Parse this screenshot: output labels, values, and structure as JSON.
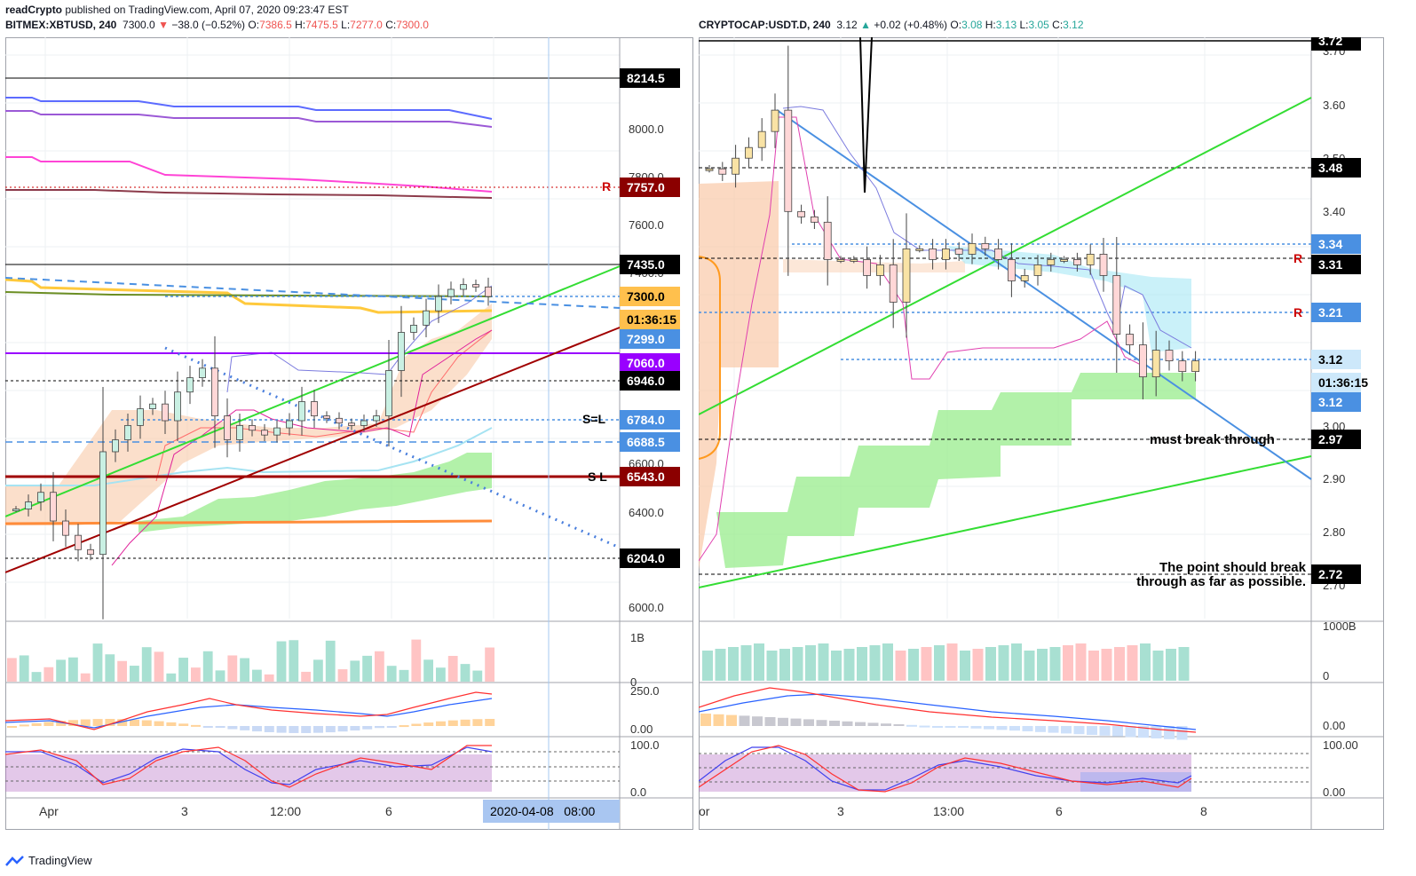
{
  "header": {
    "author": "readCrypto",
    "published": "published on TradingView.com, April 07, 2020 09:23:47 EST"
  },
  "left": {
    "symbol": "BITMEX:XBTUSD, 240",
    "price": "7300.0",
    "change": "−38.0 (−0.52%)",
    "o": "7386.5",
    "h": "7475.5",
    "l": "7277.0",
    "c": "7300.0",
    "y_ticks": [
      "8000.0",
      "7800.0",
      "7600.0",
      "7400.0",
      "6600.0",
      "6400.0",
      "6000.0"
    ],
    "levels": [
      {
        "label": "8214.5",
        "bg": "#000000",
        "fg": "#ffffff"
      },
      {
        "label": "7757.0",
        "bg": "#8b0000",
        "fg": "#ffffff"
      },
      {
        "label": "7435.0",
        "bg": "#000000",
        "fg": "#ffffff"
      },
      {
        "label": "7300.0",
        "bg": "#ffc04d",
        "fg": "#000000"
      },
      {
        "label": "01:36:15",
        "bg": "#ffc04d",
        "fg": "#000000"
      },
      {
        "label": "7299.0",
        "bg": "#4a90e2",
        "fg": "#ffffff"
      },
      {
        "label": "7060.0",
        "bg": "#9900ff",
        "fg": "#ffffff"
      },
      {
        "label": "6946.0",
        "bg": "#000000",
        "fg": "#ffffff"
      },
      {
        "label": "6784.0",
        "bg": "#4a90e2",
        "fg": "#ffffff"
      },
      {
        "label": "6688.5",
        "bg": "#4a90e2",
        "fg": "#ffffff"
      },
      {
        "label": "6543.0",
        "bg": "#8b0000",
        "fg": "#ffffff"
      },
      {
        "label": "6204.0",
        "bg": "#000000",
        "fg": "#ffffff"
      }
    ],
    "annotations": {
      "r": "R",
      "sl1": "S=L",
      "sl2": "S L"
    },
    "vol_ticks": [
      "1B",
      "0"
    ],
    "macd_ticks": [
      "250.0",
      "0.00"
    ],
    "rsi_ticks": [
      "100.0",
      "0.0"
    ],
    "x_ticks": [
      "Apr",
      "3",
      "12:00",
      "6"
    ],
    "cursor_date": "2020-04-08   08:00"
  },
  "right": {
    "symbol": "CRYPTOCAP:USDT.D, 240",
    "price": "3.12",
    "change": "+0.02 (+0.48%)",
    "o": "3.08",
    "h": "3.13",
    "l": "3.05",
    "c": "3.12",
    "y_ticks": [
      "3.70",
      "3.60",
      "3.50",
      "3.40",
      "3.00",
      "2.90",
      "2.80",
      "2.70"
    ],
    "levels": [
      {
        "label": "3.72",
        "bg": "#000000",
        "fg": "#ffffff"
      },
      {
        "label": "3.48",
        "bg": "#000000",
        "fg": "#ffffff"
      },
      {
        "label": "3.34",
        "bg": "#4a90e2",
        "fg": "#ffffff"
      },
      {
        "label": "3.31",
        "bg": "#000000",
        "fg": "#ffffff"
      },
      {
        "label": "3.21",
        "bg": "#4a90e2",
        "fg": "#ffffff"
      },
      {
        "label": "3.12",
        "bg": "#cde8fa",
        "fg": "#000000"
      },
      {
        "label": "01:36:15",
        "bg": "#cde8fa",
        "fg": "#000000"
      },
      {
        "label": "3.12",
        "bg": "#4a90e2",
        "fg": "#ffffff"
      },
      {
        "label": "2.97",
        "bg": "#000000",
        "fg": "#ffffff"
      },
      {
        "label": "2.72",
        "bg": "#000000",
        "fg": "#ffffff"
      }
    ],
    "annotations": {
      "r1": "R",
      "r2": "R",
      "must": "must break through",
      "point1": "The point should break",
      "point2": "through as far as possible."
    },
    "vol_ticks": [
      "1000B",
      "0"
    ],
    "macd_ticks": [
      "0.00"
    ],
    "rsi_ticks": [
      "100.00",
      "0.00"
    ],
    "x_ticks": [
      "or",
      "3",
      "13:00",
      "6",
      "8"
    ]
  },
  "footer": {
    "brand": "TradingView"
  },
  "chart_data": [
    {
      "type": "candlestick",
      "symbol": "BITMEX:XBTUSD",
      "timeframe": "240",
      "ylim": [
        5950,
        8350
      ],
      "horizontal_levels": [
        8214.5,
        7757.0,
        7435.0,
        7300.0,
        7060.0,
        6946.0,
        6784.0,
        6688.5,
        6543.0,
        6204.0
      ],
      "close": [
        6410,
        6440,
        6480,
        6360,
        6300,
        6240,
        6220,
        6650,
        6700,
        6760,
        6830,
        6850,
        6780,
        6900,
        6960,
        7000,
        6800,
        6700,
        6760,
        6740,
        6720,
        6750,
        6780,
        6860,
        6800,
        6790,
        6770,
        6760,
        6780,
        6800,
        6990,
        7150,
        7180,
        7240,
        7300,
        7330,
        7350,
        7340,
        7300
      ]
    },
    {
      "type": "candlestick",
      "symbol": "CRYPTOCAP:USDT.D",
      "timeframe": "240",
      "ylim": [
        2.66,
        3.73
      ],
      "horizontal_levels": [
        3.72,
        3.48,
        3.34,
        3.31,
        3.21,
        3.12,
        2.97,
        2.72
      ],
      "close": [
        3.48,
        3.47,
        3.5,
        3.52,
        3.55,
        3.59,
        3.4,
        3.39,
        3.38,
        3.31,
        3.31,
        3.31,
        3.28,
        3.3,
        3.23,
        3.33,
        3.33,
        3.31,
        3.33,
        3.32,
        3.34,
        3.33,
        3.31,
        3.27,
        3.28,
        3.3,
        3.31,
        3.31,
        3.3,
        3.32,
        3.28,
        3.17,
        3.15,
        3.09,
        3.14,
        3.12,
        3.1,
        3.12
      ]
    }
  ]
}
